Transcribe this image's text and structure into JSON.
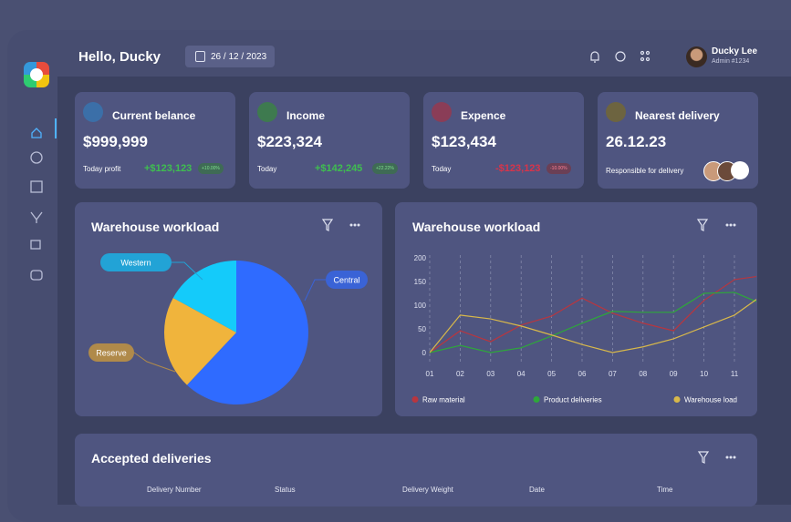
{
  "header": {
    "greeting": "Hello, Ducky",
    "date": "26 / 12 / 2023",
    "user_name": "Ducky Lee",
    "user_role": "Admin #1234"
  },
  "cards": [
    {
      "title": "Current belance",
      "value": "$999,999",
      "label": "Today profit",
      "change": "+$123,123",
      "badge": "+10.00%"
    },
    {
      "title": "Income",
      "value": "$223,324",
      "label": "Today",
      "change": "+$142,245",
      "badge": "+22.22%"
    },
    {
      "title": "Expence",
      "value": "$123,434",
      "label": "Today",
      "change": "-$123,123",
      "badge": "-10.00%"
    },
    {
      "title": "Nearest delivery",
      "value": "26.12.23",
      "label": "Responsible for delivery"
    }
  ],
  "chart_data": [
    {
      "type": "pie",
      "title": "Warehouse workload",
      "categories": [
        "Central",
        "Reserve",
        "Western"
      ],
      "values": [
        62,
        21,
        17
      ],
      "colors": [
        "#2f6bff",
        "#f0b43c",
        "#14cbfa"
      ]
    },
    {
      "type": "line",
      "title": "Warehouse workload",
      "categories": [
        "01",
        "02",
        "03",
        "04",
        "05",
        "06",
        "07",
        "08",
        "09",
        "10",
        "11",
        null
      ],
      "series": [
        {
          "name": "Raw material",
          "color": "#b8363f",
          "values": [
            0,
            46,
            23,
            58,
            77,
            115,
            83,
            62,
            46,
            110,
            154,
            163
          ]
        },
        {
          "name": "Product deliveries",
          "color": "#2ea83a",
          "values": [
            0,
            15,
            0,
            10,
            35,
            62,
            87,
            85,
            85,
            125,
            127,
            100
          ]
        },
        {
          "name": "Warehouse load",
          "color": "#d8b84a",
          "values": [
            0,
            79,
            71,
            56,
            37,
            17,
            0,
            12,
            29,
            54,
            79,
            125
          ]
        }
      ],
      "ylim": [
        -10,
        200
      ],
      "yticks": [
        0,
        50,
        100,
        150,
        200
      ]
    }
  ],
  "table": {
    "title": "Accepted deliveries",
    "columns": [
      "Delivery Number",
      "Status",
      "Delivery Weight",
      "Date",
      "Time"
    ]
  }
}
